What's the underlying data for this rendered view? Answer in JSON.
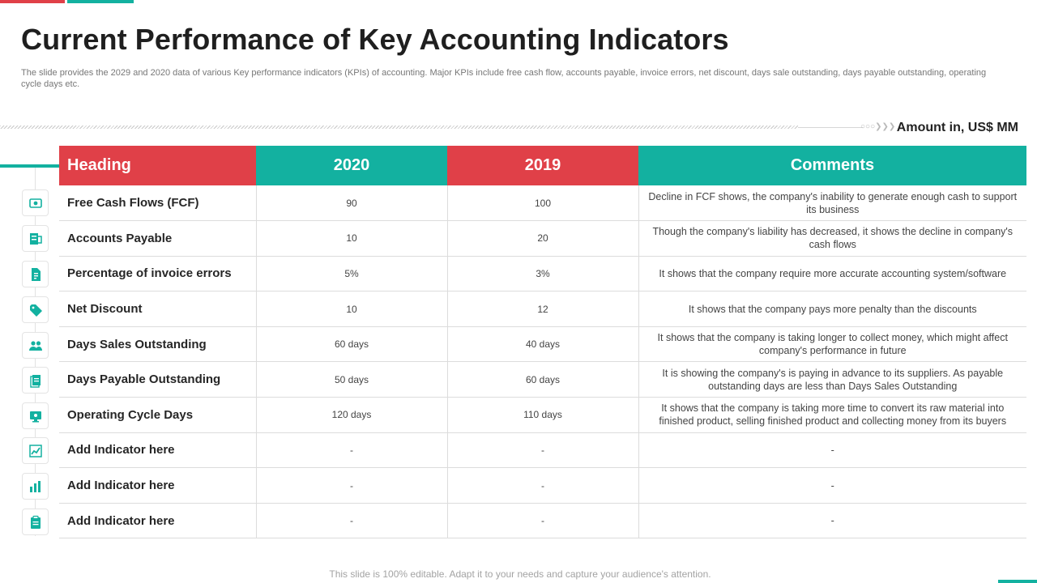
{
  "slide": {
    "title": "Current Performance of Key Accounting Indicators",
    "subtitle": "The slide provides the 2029 and 2020 data of various Key performance indicators (KPIs) of accounting. Major KPIs include free cash flow, accounts payable, invoice errors, net discount, days sale outstanding, days payable outstanding, operating cycle days etc.",
    "amount_label": "Amount in, US$ MM",
    "footer": "This slide is 100% editable. Adapt it to your needs and capture your audience's attention."
  },
  "colors": {
    "red": "#e04048",
    "teal": "#13b1a0"
  },
  "table": {
    "headers": {
      "heading": "Heading",
      "col_2020": "2020",
      "col_2019": "2019",
      "comments": "Comments"
    },
    "rows": [
      {
        "icon": "cash-flow-icon",
        "heading": "Free Cash Flows (FCF)",
        "v2020": "90",
        "v2019": "100",
        "comment": "Decline in FCF shows, the company's inability to generate enough cash to support its business"
      },
      {
        "icon": "accounts-payable-icon",
        "heading": "Accounts Payable",
        "v2020": "10",
        "v2019": "20",
        "comment": "Though the company's liability has decreased, it shows the decline in company's cash flows"
      },
      {
        "icon": "invoice-icon",
        "heading": "Percentage of invoice errors",
        "v2020": "5%",
        "v2019": "3%",
        "comment": "It shows that the company require more accurate accounting system/software"
      },
      {
        "icon": "discount-tag-icon",
        "heading": "Net Discount",
        "v2020": "10",
        "v2019": "12",
        "comment": "It shows that the company pays more penalty than the discounts"
      },
      {
        "icon": "people-icon",
        "heading": "Days Sales Outstanding",
        "v2020": "60 days",
        "v2019": "40 days",
        "comment": "It shows that the company is taking longer to collect money, which might affect company's performance in future"
      },
      {
        "icon": "documents-icon",
        "heading": "Days Payable Outstanding",
        "v2020": "50 days",
        "v2019": "60 days",
        "comment": "It is showing the company's is paying in advance to its suppliers. As payable outstanding days are less than Days Sales Outstanding"
      },
      {
        "icon": "monitor-icon",
        "heading": "Operating Cycle Days",
        "v2020": "120 days",
        "v2019": "110 days",
        "comment": "It shows that the company is taking more time to convert its raw material into finished product, selling finished product and collecting money from its buyers"
      },
      {
        "icon": "chart-icon",
        "heading": "Add Indicator here",
        "v2020": "-",
        "v2019": "-",
        "comment": "-"
      },
      {
        "icon": "analytics-icon",
        "heading": "Add Indicator here",
        "v2020": "-",
        "v2019": "-",
        "comment": "-"
      },
      {
        "icon": "clipboard-icon",
        "heading": "Add Indicator here",
        "v2020": "-",
        "v2019": "-",
        "comment": "-"
      }
    ]
  }
}
